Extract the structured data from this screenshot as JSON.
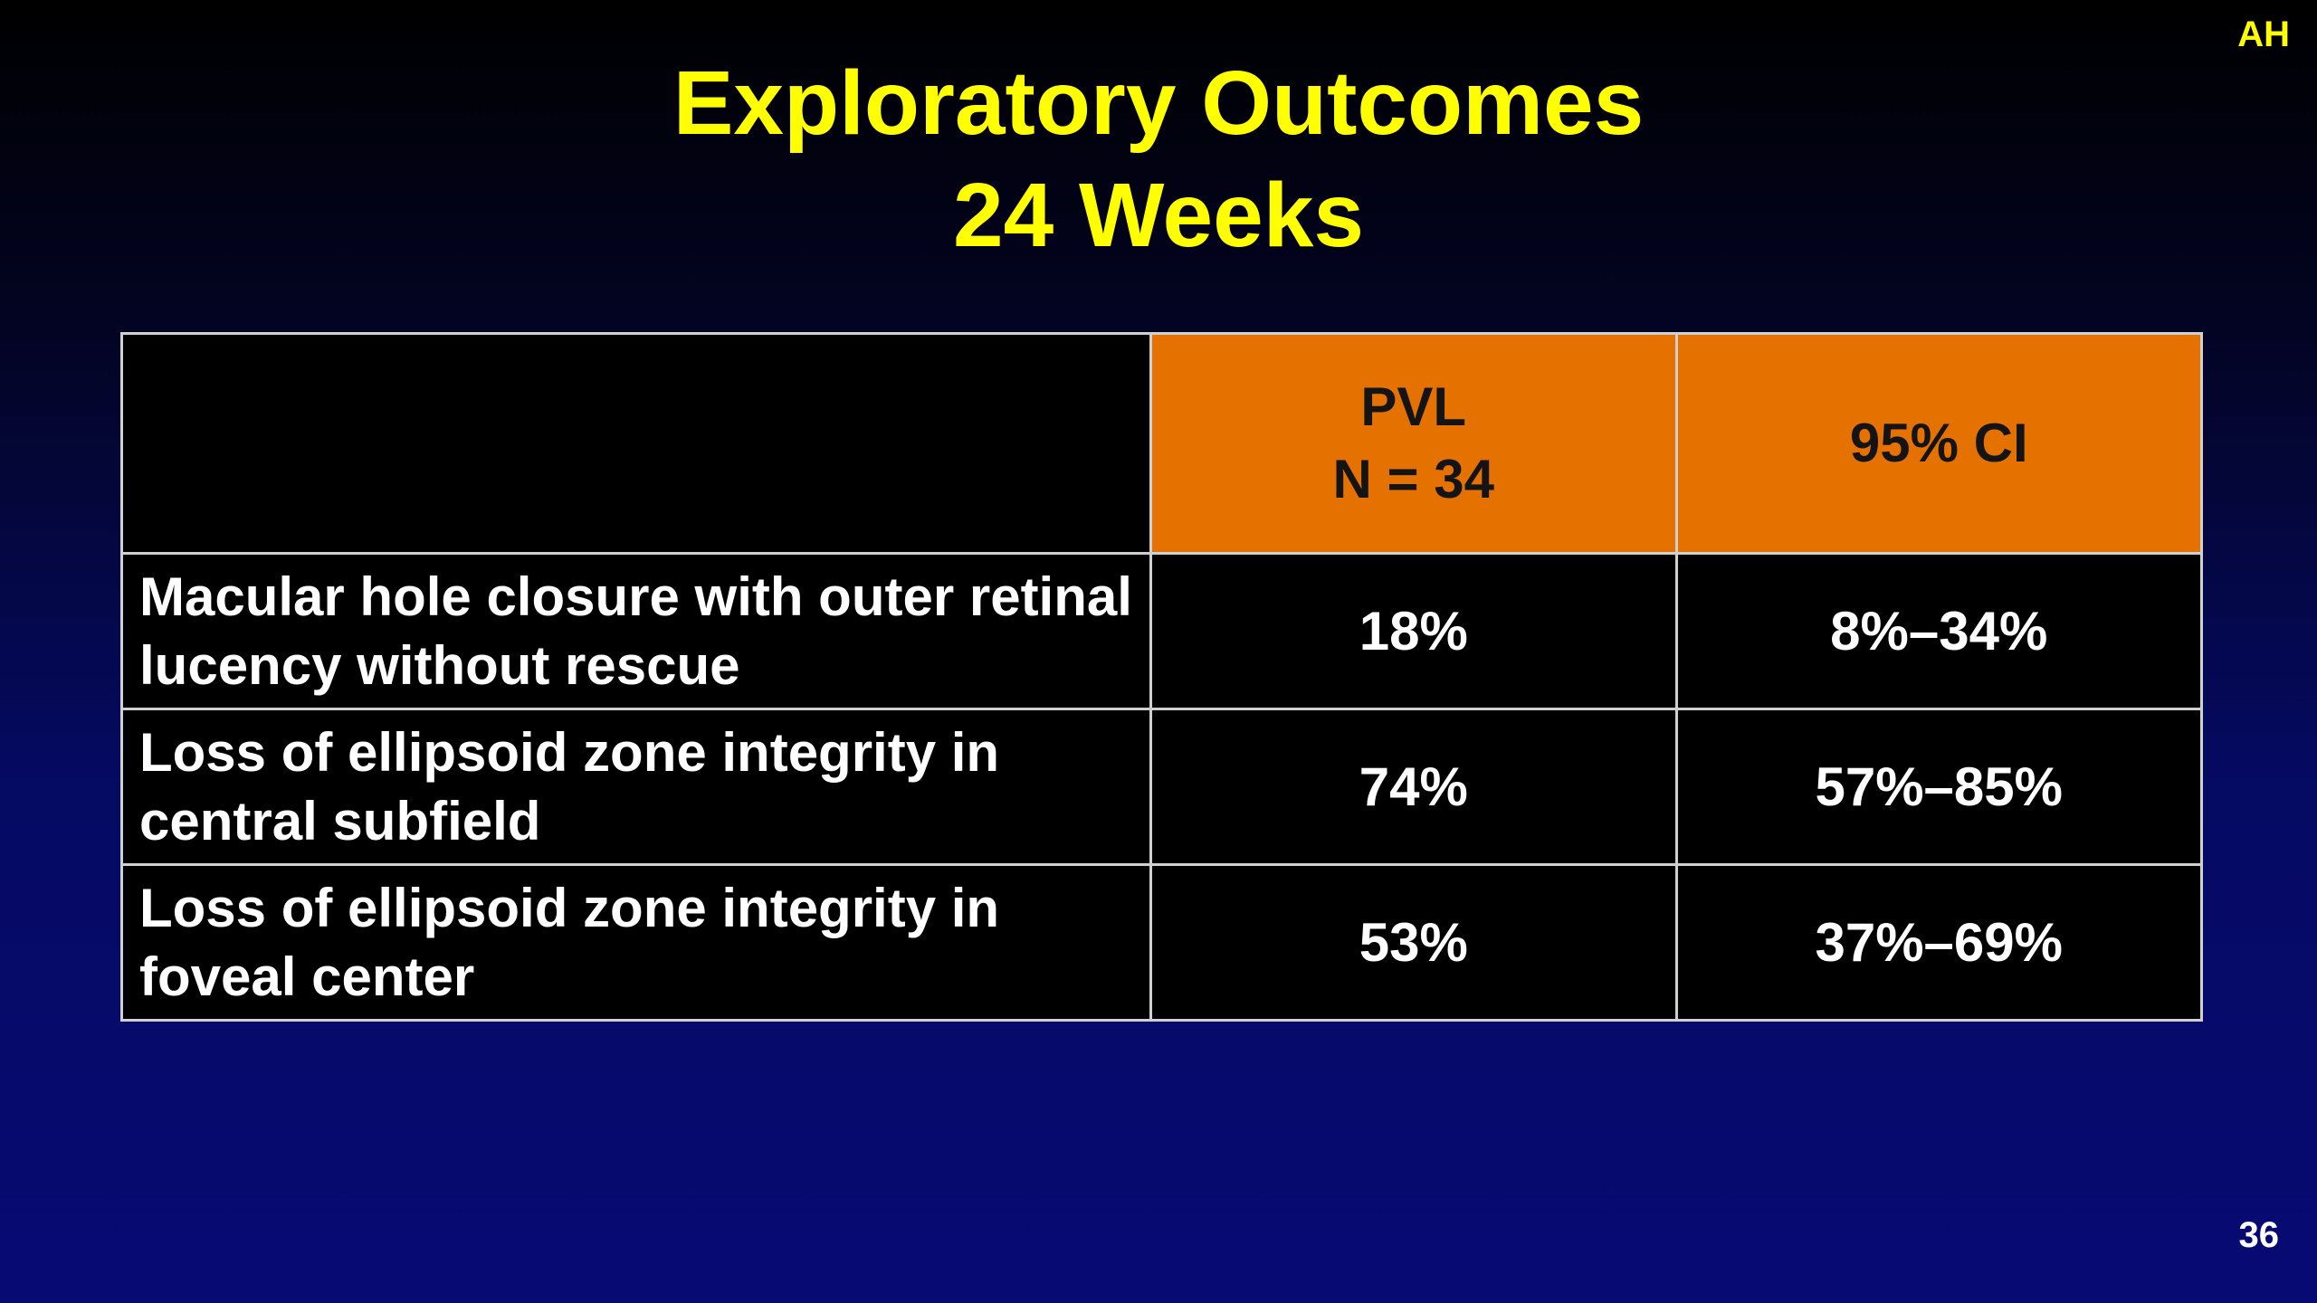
{
  "slide": {
    "corner_tag": "AH",
    "title_line1": "Exploratory Outcomes",
    "title_line2": "24 Weeks",
    "page_number": "36"
  },
  "table": {
    "header": {
      "col2_line1": "PVL",
      "col2_line2": "N = 34",
      "col3": "95% CI"
    },
    "rows": [
      {
        "label": "Macular hole closure with outer retinal lucency without rescue",
        "pvl": "18%",
        "ci": "8%–34%"
      },
      {
        "label": "Loss of ellipsoid zone integrity in central subfield",
        "pvl": "74%",
        "ci": "57%–85%"
      },
      {
        "label": "Loss of ellipsoid zone integrity in foveal center",
        "pvl": "53%",
        "ci": "37%–69%"
      }
    ]
  },
  "colors": {
    "background_top": "#000000",
    "background_bottom": "#070a73",
    "title": "#ffff00",
    "header_fill": "#e57200",
    "cell_fill": "#000000",
    "border": "#d0d0d0"
  }
}
